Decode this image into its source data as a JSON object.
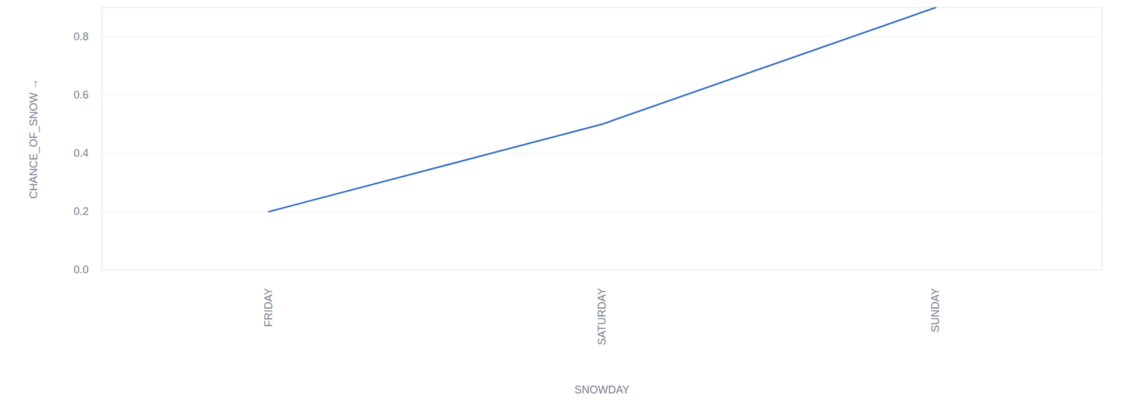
{
  "chart_data": {
    "type": "line",
    "xlabel": "SNOWDAY",
    "ylabel": "CHANCE_OF_SNOW",
    "categories": [
      "FRIDAY",
      "SATURDAY",
      "SUNDAY"
    ],
    "values": [
      0.2,
      0.5,
      0.9
    ],
    "color": "#2f6bc2",
    "ylim": [
      0,
      0.9
    ],
    "yticks": [
      {
        "value": 0,
        "label": "0.0"
      },
      0.2,
      0.4,
      0.6,
      0.8
    ],
    "grid": true
  }
}
